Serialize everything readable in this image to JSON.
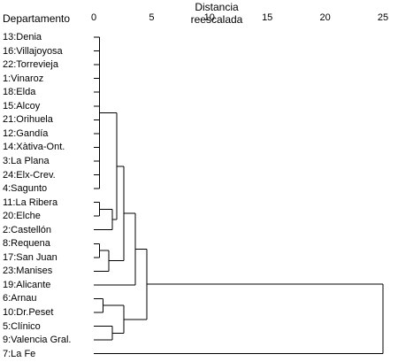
{
  "axis_title": "Distancia reescalada",
  "column_header": "Departamento",
  "ticks": [
    "0",
    "5",
    "10",
    "15",
    "20",
    "25"
  ],
  "leaves": [
    {
      "label": "13:Denia"
    },
    {
      "label": "16:Villajoyosa"
    },
    {
      "label": "22:Torrevieja"
    },
    {
      "label": "1:Vinaroz"
    },
    {
      "label": "18:Elda"
    },
    {
      "label": "15:Alcoy"
    },
    {
      "label": "21:Orihuela"
    },
    {
      "label": "12:Gandía"
    },
    {
      "label": "14:Xàtiva-Ont."
    },
    {
      "label": "3:La Plana"
    },
    {
      "label": "24:Elx-Crev."
    },
    {
      "label": "4:Sagunto"
    },
    {
      "label": "11:La Ribera"
    },
    {
      "label": "20:Elche"
    },
    {
      "label": "2:Castellón"
    },
    {
      "label": "8:Requena"
    },
    {
      "label": "17:San Juan"
    },
    {
      "label": "23:Manises"
    },
    {
      "label": "19:Alicante"
    },
    {
      "label": "6:Arnau"
    },
    {
      "label": "10:Dr.Peset"
    },
    {
      "label": "5:Clínico"
    },
    {
      "label": "9:Valencia Gral."
    },
    {
      "label": "7:La Fe"
    }
  ],
  "chart_data": {
    "type": "dendrogram",
    "x_range": [
      0,
      25
    ],
    "merges": [
      {
        "children": [
          0,
          1,
          2,
          3,
          4,
          5,
          6,
          7,
          8,
          9,
          10,
          11
        ],
        "height": 0.5
      },
      {
        "children": [
          12,
          13
        ],
        "height": 0.5
      },
      {
        "children": [
          "L:12-13",
          14
        ],
        "height": 1.6
      },
      {
        "children": [
          "L:0-11",
          "L:12-14"
        ],
        "height": 2.0
      },
      {
        "children": [
          15,
          16
        ],
        "height": 0.5
      },
      {
        "children": [
          "L:15-16",
          17
        ],
        "height": 1.3
      },
      {
        "children": [
          "L:0-14",
          "L:15-17"
        ],
        "height": 2.6
      },
      {
        "children": [
          "L:0-17",
          18
        ],
        "height": 3.6
      },
      {
        "children": [
          19,
          20
        ],
        "height": 0.8
      },
      {
        "children": [
          21,
          22
        ],
        "height": 1.6
      },
      {
        "children": [
          "L:19-20",
          "L:21-22"
        ],
        "height": 2.6
      },
      {
        "children": [
          "L:0-18",
          "L:19-22"
        ],
        "height": 4.6
      },
      {
        "children": [
          "L:0-22",
          23
        ],
        "height": 25.0
      }
    ]
  }
}
